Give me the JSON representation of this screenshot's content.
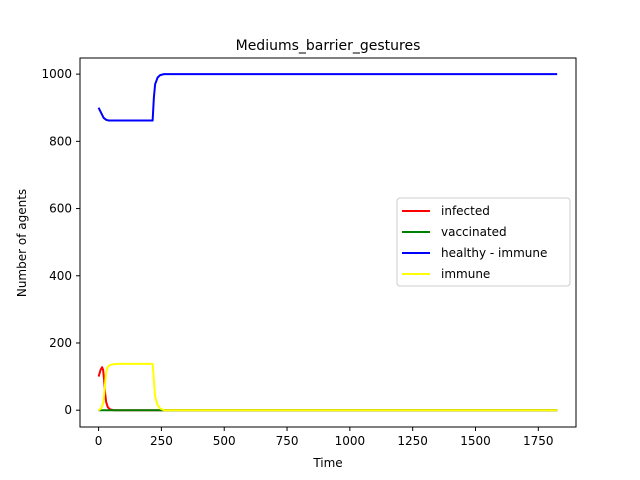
{
  "chart_data": {
    "type": "line",
    "title": "Mediums_barrier_gestures",
    "xlabel": "Time",
    "ylabel": "Number of agents",
    "xlim": [
      -74,
      1900
    ],
    "ylim": [
      -50,
      1048
    ],
    "xticks": [
      0,
      250,
      500,
      750,
      1000,
      1250,
      1500,
      1750
    ],
    "yticks": [
      0,
      200,
      400,
      600,
      800,
      1000
    ],
    "grid": false,
    "legend_position": "center-right",
    "series": [
      {
        "name": "infected",
        "color": "#ff0000",
        "x": [
          0,
          8,
          14,
          18,
          22,
          26,
          30,
          36,
          44,
          60,
          100,
          200,
          400,
          800,
          1200,
          1600,
          1825
        ],
        "y": [
          100,
          120,
          128,
          120,
          90,
          50,
          25,
          10,
          3,
          0,
          0,
          0,
          0,
          0,
          0,
          0,
          0
        ]
      },
      {
        "name": "vaccinated",
        "color": "#008000",
        "x": [
          0,
          200,
          400,
          800,
          1200,
          1600,
          1825
        ],
        "y": [
          0,
          0,
          0,
          0,
          0,
          0,
          0
        ]
      },
      {
        "name": "healthy - immune",
        "color": "#0000ff",
        "x": [
          0,
          10,
          20,
          30,
          40,
          60,
          100,
          150,
          200,
          215,
          220,
          225,
          235,
          245,
          260,
          300,
          500,
          800,
          1200,
          1600,
          1825
        ],
        "y": [
          900,
          885,
          870,
          864,
          862,
          862,
          862,
          862,
          862,
          862,
          930,
          970,
          990,
          997,
          1000,
          1000,
          1000,
          1000,
          1000,
          1000,
          1000
        ]
      },
      {
        "name": "immune",
        "color": "#ffff00",
        "x": [
          0,
          10,
          18,
          24,
          28,
          32,
          36,
          44,
          60,
          80,
          120,
          160,
          200,
          215,
          220,
          225,
          235,
          245,
          260,
          300,
          500,
          800,
          1200,
          1600,
          1825
        ],
        "y": [
          0,
          5,
          20,
          60,
          100,
          120,
          128,
          134,
          137,
          138,
          138,
          138,
          138,
          138,
          90,
          40,
          15,
          5,
          0,
          0,
          0,
          0,
          0,
          0,
          0
        ]
      }
    ]
  }
}
